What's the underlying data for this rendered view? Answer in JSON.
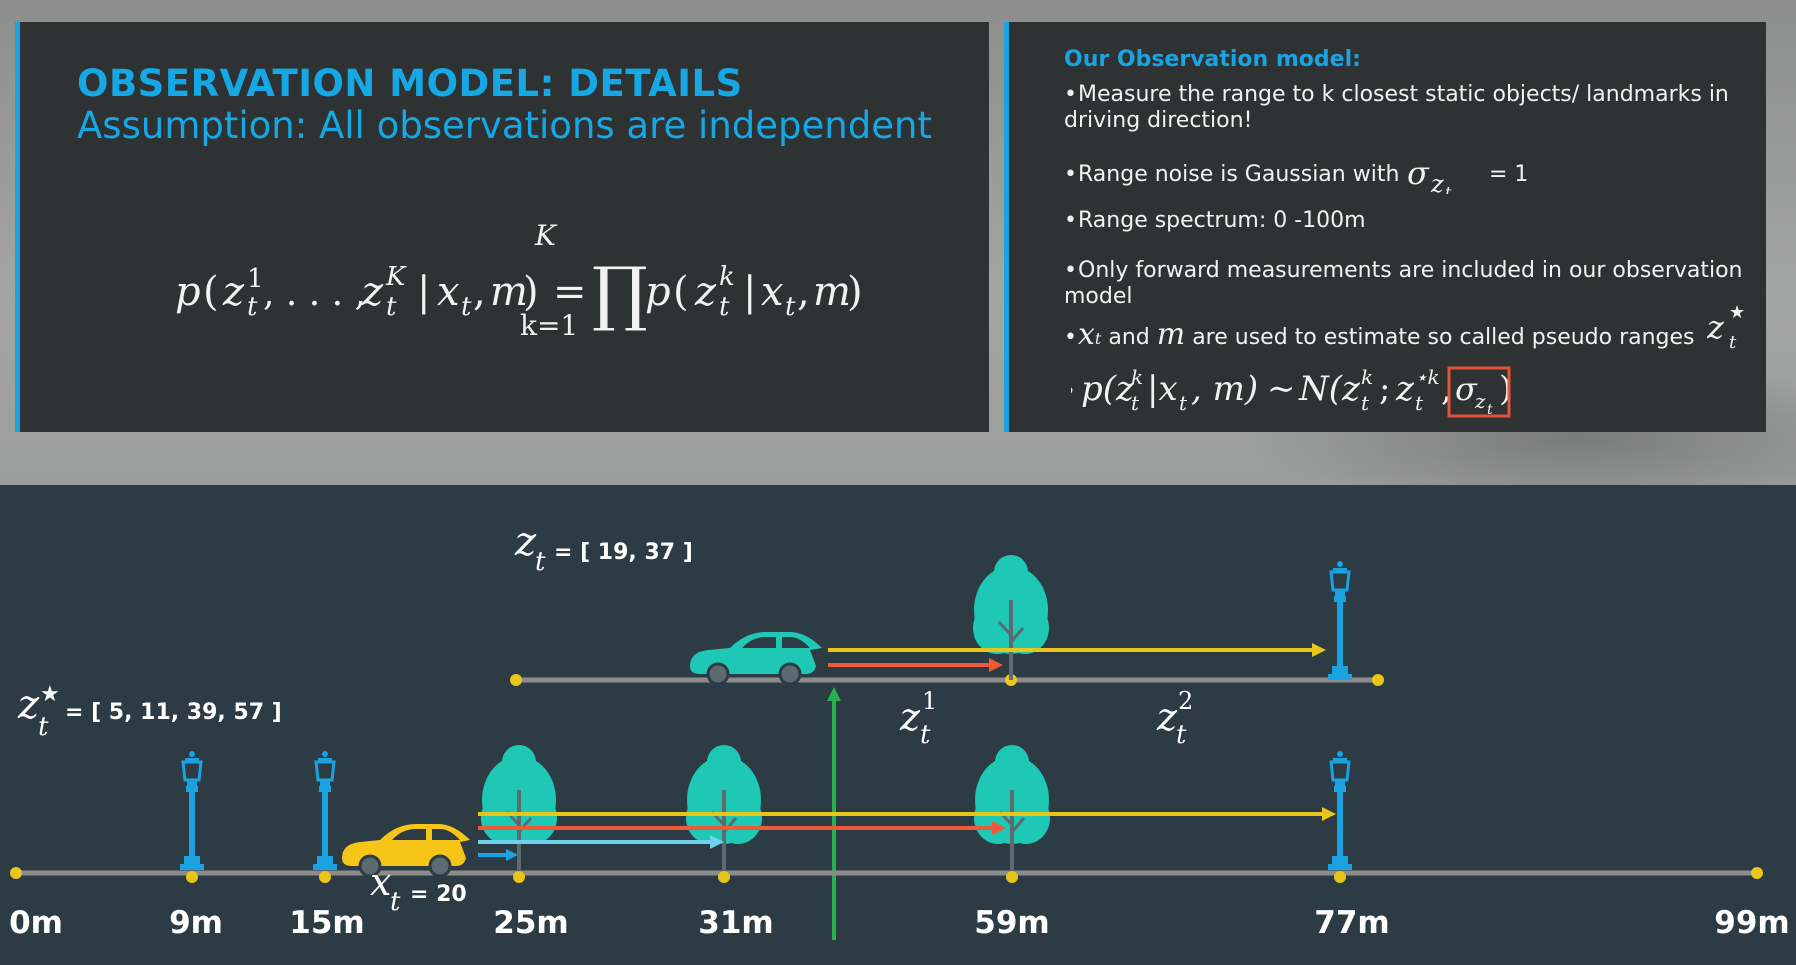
{
  "slide": {
    "title": "OBSERVATION MODEL: DETAILS",
    "subtitle": "Assumption: All observations are independent"
  },
  "formula": {
    "lhs_func": "p",
    "var": "z",
    "sup_1": "1",
    "sub_t": "t",
    "ellipsis": ", . . . ,",
    "sup_K": "K",
    "given": "x",
    "map": "m",
    "equals": "=",
    "prod_top": "K",
    "prod_bottom": "k=1",
    "sup_k": "k"
  },
  "observation_model": {
    "heading": "Our Observation model:",
    "bullets": [
      "Measure the range to k closest static objects/ landmarks in driving direction!",
      "Range noise is Gaussian with",
      "Range spectrum: 0 -100m",
      "Only forward measurements are included in our observation model",
      "and",
      "are used to estimate so called pseudo ranges"
    ],
    "sigma_value": "= 1",
    "bullet_x": "x",
    "bullet_m": "m",
    "formula_text": "p(z|x, m) ~ N(z ; z*, σ)"
  },
  "scene": {
    "zt_label": "= [ 19, 37 ]",
    "zstar_label": "= [ 5, 11, 39, 57 ]",
    "xt_label": "= 20",
    "z1_label": "1",
    "z2_label": "2",
    "distances": [
      "0m",
      "9m",
      "15m",
      "25m",
      "31m",
      "59m",
      "77m",
      "99m"
    ],
    "colors": {
      "car_yellow": "#f5c518",
      "car_teal": "#1ec8b4",
      "tree": "#1ec8b4",
      "lamp": "#1aa3e0",
      "arrow_yellow": "#e8c61a",
      "arrow_red": "#ee5a37",
      "arrow_blue": "#6fd1ee",
      "marker_green": "#28b24b",
      "axis": "#8c8c8c",
      "dot": "#e8c61a"
    }
  }
}
